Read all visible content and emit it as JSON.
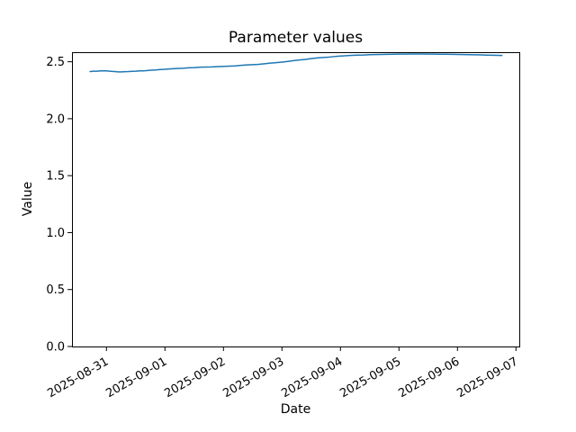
{
  "figure": {
    "background_color": "#ffffff",
    "frame_color": "#000000",
    "text_color": "#000000"
  },
  "chart_data": {
    "type": "line",
    "title": "Parameter values",
    "xlabel": "Date",
    "ylabel": "Value",
    "grid": false,
    "legend": null,
    "x_origin_label": "2025-08-31",
    "x_tick_labels": [
      "2025-08-31",
      "2025-09-01",
      "2025-09-02",
      "2025-09-03",
      "2025-09-04",
      "2025-09-05",
      "2025-09-06",
      "2025-09-07"
    ],
    "x_tick_days": [
      0,
      1,
      2,
      3,
      4,
      5,
      6,
      7
    ],
    "x_tick_rotation_deg": 30,
    "y_tick_labels": [
      "0.0",
      "0.5",
      "1.0",
      "1.5",
      "2.0",
      "2.5"
    ],
    "y_ticks": [
      0.0,
      0.5,
      1.0,
      1.5,
      2.0,
      2.5
    ],
    "xlim_days": [
      -0.589,
      7.057
    ],
    "ylim": [
      0,
      2.584
    ],
    "series": [
      {
        "name": "parameter-value",
        "color": "#1f77b4",
        "line_width": 1.5,
        "points_day_value": [
          [
            -0.28,
            2.414
          ],
          [
            -0.22,
            2.417
          ],
          [
            -0.16,
            2.417
          ],
          [
            -0.1,
            2.42
          ],
          [
            -0.04,
            2.421
          ],
          [
            0.02,
            2.419
          ],
          [
            0.08,
            2.416
          ],
          [
            0.14,
            2.414
          ],
          [
            0.2,
            2.411
          ],
          [
            0.26,
            2.411
          ],
          [
            0.32,
            2.413
          ],
          [
            0.38,
            2.414
          ],
          [
            0.44,
            2.416
          ],
          [
            0.5,
            2.417
          ],
          [
            0.56,
            2.42
          ],
          [
            0.62,
            2.42
          ],
          [
            0.68,
            2.422
          ],
          [
            0.76,
            2.426
          ],
          [
            0.84,
            2.428
          ],
          [
            0.92,
            2.432
          ],
          [
            1.0,
            2.434
          ],
          [
            1.1,
            2.438
          ],
          [
            1.2,
            2.441
          ],
          [
            1.3,
            2.443
          ],
          [
            1.4,
            2.447
          ],
          [
            1.5,
            2.449
          ],
          [
            1.6,
            2.453
          ],
          [
            1.7,
            2.454
          ],
          [
            1.8,
            2.455
          ],
          [
            1.9,
            2.458
          ],
          [
            2.0,
            2.46
          ],
          [
            2.1,
            2.462
          ],
          [
            2.2,
            2.464
          ],
          [
            2.3,
            2.468
          ],
          [
            2.4,
            2.472
          ],
          [
            2.5,
            2.474
          ],
          [
            2.6,
            2.477
          ],
          [
            2.7,
            2.482
          ],
          [
            2.8,
            2.488
          ],
          [
            2.9,
            2.492
          ],
          [
            3.0,
            2.497
          ],
          [
            3.1,
            2.503
          ],
          [
            3.2,
            2.51
          ],
          [
            3.3,
            2.516
          ],
          [
            3.4,
            2.521
          ],
          [
            3.5,
            2.528
          ],
          [
            3.6,
            2.534
          ],
          [
            3.7,
            2.538
          ],
          [
            3.8,
            2.541
          ],
          [
            3.9,
            2.546
          ],
          [
            4.0,
            2.55
          ],
          [
            4.1,
            2.553
          ],
          [
            4.2,
            2.556
          ],
          [
            4.3,
            2.558
          ],
          [
            4.4,
            2.559
          ],
          [
            4.5,
            2.562
          ],
          [
            4.6,
            2.563
          ],
          [
            4.7,
            2.564
          ],
          [
            4.8,
            2.565
          ],
          [
            4.9,
            2.566
          ],
          [
            5.0,
            2.567
          ],
          [
            5.1,
            2.567
          ],
          [
            5.2,
            2.568
          ],
          [
            5.3,
            2.568
          ],
          [
            5.4,
            2.568
          ],
          [
            5.5,
            2.567
          ],
          [
            5.6,
            2.567
          ],
          [
            5.7,
            2.566
          ],
          [
            5.8,
            2.566
          ],
          [
            5.9,
            2.565
          ],
          [
            6.0,
            2.564
          ],
          [
            6.1,
            2.563
          ],
          [
            6.2,
            2.562
          ],
          [
            6.3,
            2.561
          ],
          [
            6.4,
            2.56
          ],
          [
            6.5,
            2.558
          ],
          [
            6.6,
            2.557
          ],
          [
            6.68,
            2.556
          ],
          [
            6.76,
            2.555
          ]
        ]
      }
    ]
  }
}
